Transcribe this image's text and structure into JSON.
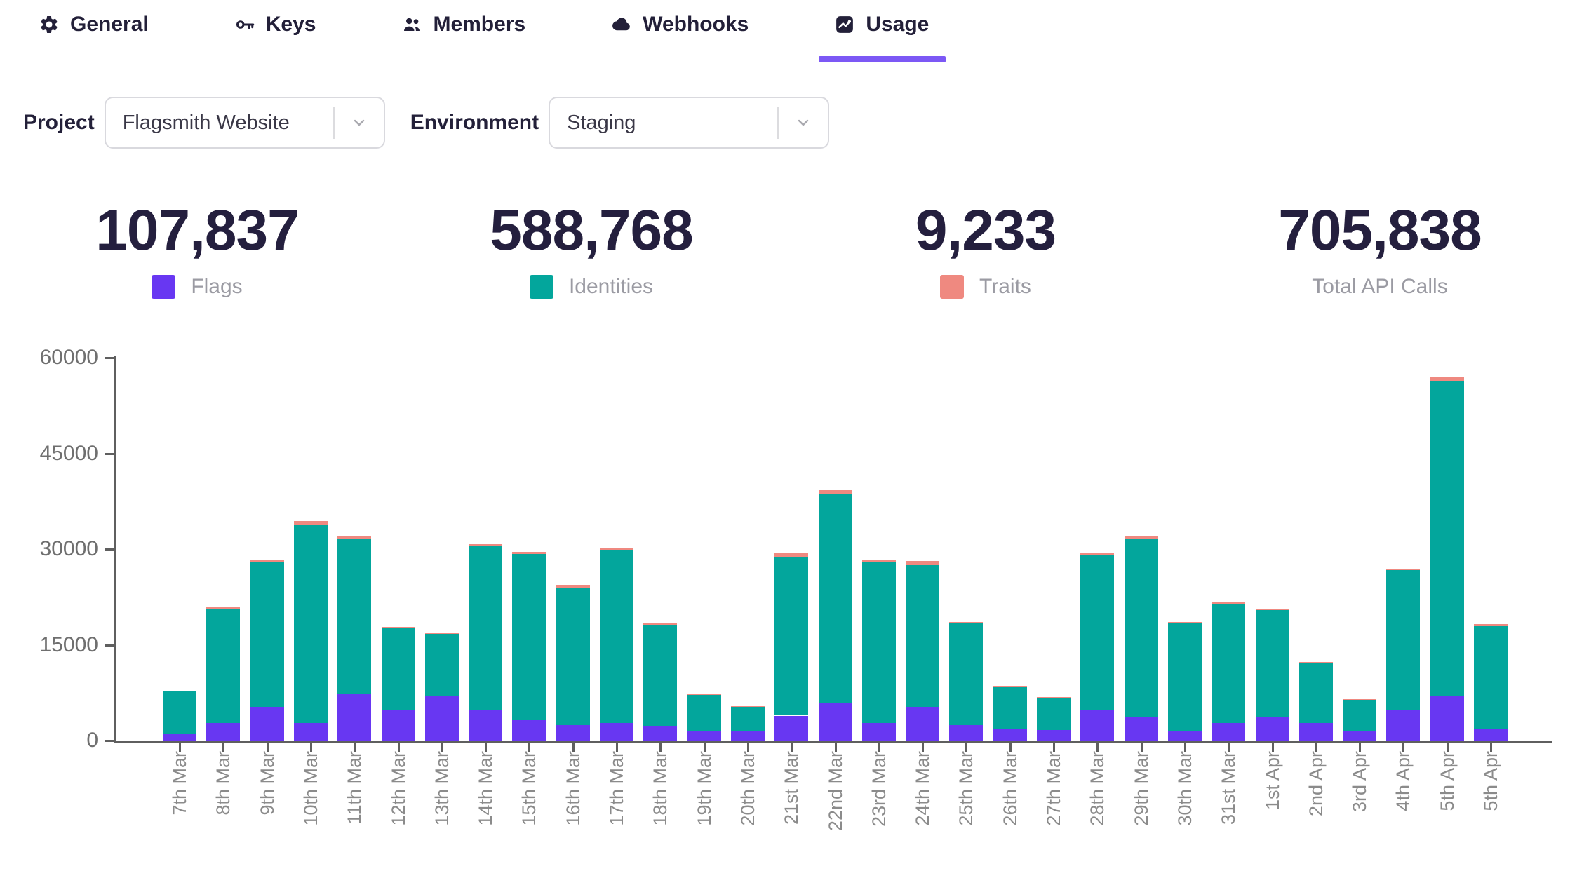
{
  "tabs": [
    {
      "label": "General",
      "icon": "gear-icon",
      "active": false
    },
    {
      "label": "Keys",
      "icon": "key-icon",
      "active": false
    },
    {
      "label": "Members",
      "icon": "members-icon",
      "active": false
    },
    {
      "label": "Webhooks",
      "icon": "cloud-icon",
      "active": false
    },
    {
      "label": "Usage",
      "icon": "usage-chart-icon",
      "active": true
    }
  ],
  "filters": {
    "project_label": "Project",
    "project_value": "Flagsmith Website",
    "environment_label": "Environment",
    "environment_value": "Staging"
  },
  "stats": [
    {
      "value": "107,837",
      "label": "Flags",
      "color": "#6837f2"
    },
    {
      "value": "588,768",
      "label": "Identities",
      "color": "#03a69c"
    },
    {
      "value": "9,233",
      "label": "Traits",
      "color": "#ef8980"
    },
    {
      "value": "705,838",
      "label": "Total API Calls",
      "color": null
    }
  ],
  "colors": {
    "accent_underline": "#7c58f5",
    "flags": "#6837f2",
    "identities": "#03a69c",
    "traits": "#ef8980",
    "axis": "#5f5f5f"
  },
  "chart_data": {
    "type": "bar",
    "stacked": true,
    "title": "",
    "xlabel": "",
    "ylabel": "",
    "ylim": [
      0,
      60000
    ],
    "y_ticks": [
      0,
      15000,
      30000,
      45000,
      60000
    ],
    "grid": false,
    "legend_position": "top-stats-row",
    "categories": [
      "7th Mar",
      "8th Mar",
      "9th Mar",
      "10th Mar",
      "11th Mar",
      "12th Mar",
      "13th Mar",
      "14th Mar",
      "15th Mar",
      "16th Mar",
      "17th Mar",
      "18th Mar",
      "19th Mar",
      "20th Mar",
      "21st Mar",
      "22nd Mar",
      "23rd Mar",
      "24th Mar",
      "25th Mar",
      "26th Mar",
      "27th Mar",
      "28th Mar",
      "29th Mar",
      "30th Mar",
      "31st Mar",
      "1st Apr",
      "2nd Apr",
      "3rd Apr",
      "4th Apr",
      "5th Apr",
      "5th Apr"
    ],
    "series": [
      {
        "name": "Flags",
        "color": "#6837f2",
        "values": [
          1100,
          2700,
          5250,
          2800,
          7250,
          4800,
          7050,
          4800,
          3250,
          2450,
          2800,
          2350,
          1450,
          1450,
          3900,
          5900,
          2700,
          5250,
          2450,
          1900,
          1700,
          4800,
          3700,
          1550,
          2800,
          3700,
          2800,
          1450,
          4800,
          7050,
          1800
        ]
      },
      {
        "name": "Identities",
        "color": "#03a69c",
        "values": [
          6550,
          17950,
          22670,
          31000,
          24450,
          12800,
          9670,
          25600,
          25950,
          21550,
          27050,
          15750,
          5720,
          3840,
          24900,
          32640,
          25300,
          22240,
          15900,
          6600,
          5020,
          24200,
          27950,
          16850,
          18600,
          16700,
          9350,
          4970,
          21880,
          49170,
          16150
        ]
      },
      {
        "name": "Traits",
        "color": "#ef8980",
        "values": [
          150,
          300,
          330,
          600,
          350,
          150,
          130,
          400,
          400,
          350,
          300,
          200,
          80,
          60,
          550,
          660,
          350,
          660,
          200,
          100,
          80,
          350,
          400,
          150,
          250,
          250,
          150,
          80,
          220,
          730,
          250
        ]
      }
    ]
  }
}
